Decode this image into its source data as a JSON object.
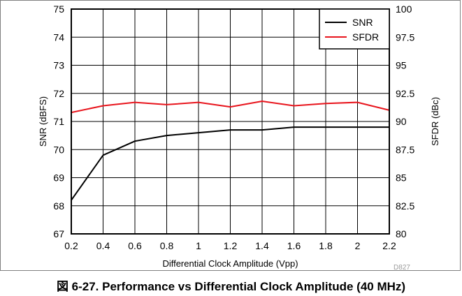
{
  "chart_data": {
    "type": "line",
    "x": [
      0.2,
      0.4,
      0.6,
      0.8,
      1.0,
      1.2,
      1.4,
      1.6,
      1.8,
      2.0,
      2.2
    ],
    "xlabel": "Differential Clock Amplitude (Vpp)",
    "xlim": [
      0.2,
      2.2
    ],
    "xticks": [
      "0.2",
      "0.4",
      "0.6",
      "0.8",
      "1",
      "1.2",
      "1.4",
      "1.6",
      "1.8",
      "2",
      "2.2"
    ],
    "ylabel": "SNR (dBFS)",
    "ylim": [
      67,
      75
    ],
    "yticks": [
      "67",
      "68",
      "69",
      "70",
      "71",
      "72",
      "73",
      "74",
      "75"
    ],
    "y2label": "SFDR (dBc)",
    "y2lim": [
      80,
      100
    ],
    "y2ticks": [
      "80",
      "82.5",
      "85",
      "87.5",
      "90",
      "92.5",
      "95",
      "97.5",
      "100"
    ],
    "grid": true,
    "legend_position": "top-right",
    "code": "D827",
    "series": [
      {
        "name": "SNR",
        "axis": "left",
        "color": "#000000",
        "x": [
          0.2,
          0.4,
          0.6,
          0.8,
          1.0,
          1.2,
          1.4,
          1.6,
          1.8,
          2.0,
          2.2
        ],
        "values": [
          68.2,
          69.8,
          70.3,
          70.5,
          70.6,
          70.7,
          70.7,
          70.8,
          70.8,
          70.8,
          70.8
        ]
      },
      {
        "name": "SFDR",
        "axis": "right",
        "color": "#e8141c",
        "x": [
          0.2,
          0.4,
          0.6,
          0.8,
          1.0,
          1.2,
          1.4,
          1.6,
          1.8,
          2.0,
          2.2
        ],
        "values": [
          90.8,
          91.4,
          91.7,
          91.5,
          91.7,
          91.3,
          91.8,
          91.4,
          91.6,
          91.7,
          91.0
        ]
      }
    ]
  },
  "caption": "図 6-27. Performance vs Differential Clock Amplitude (40 MHz)"
}
